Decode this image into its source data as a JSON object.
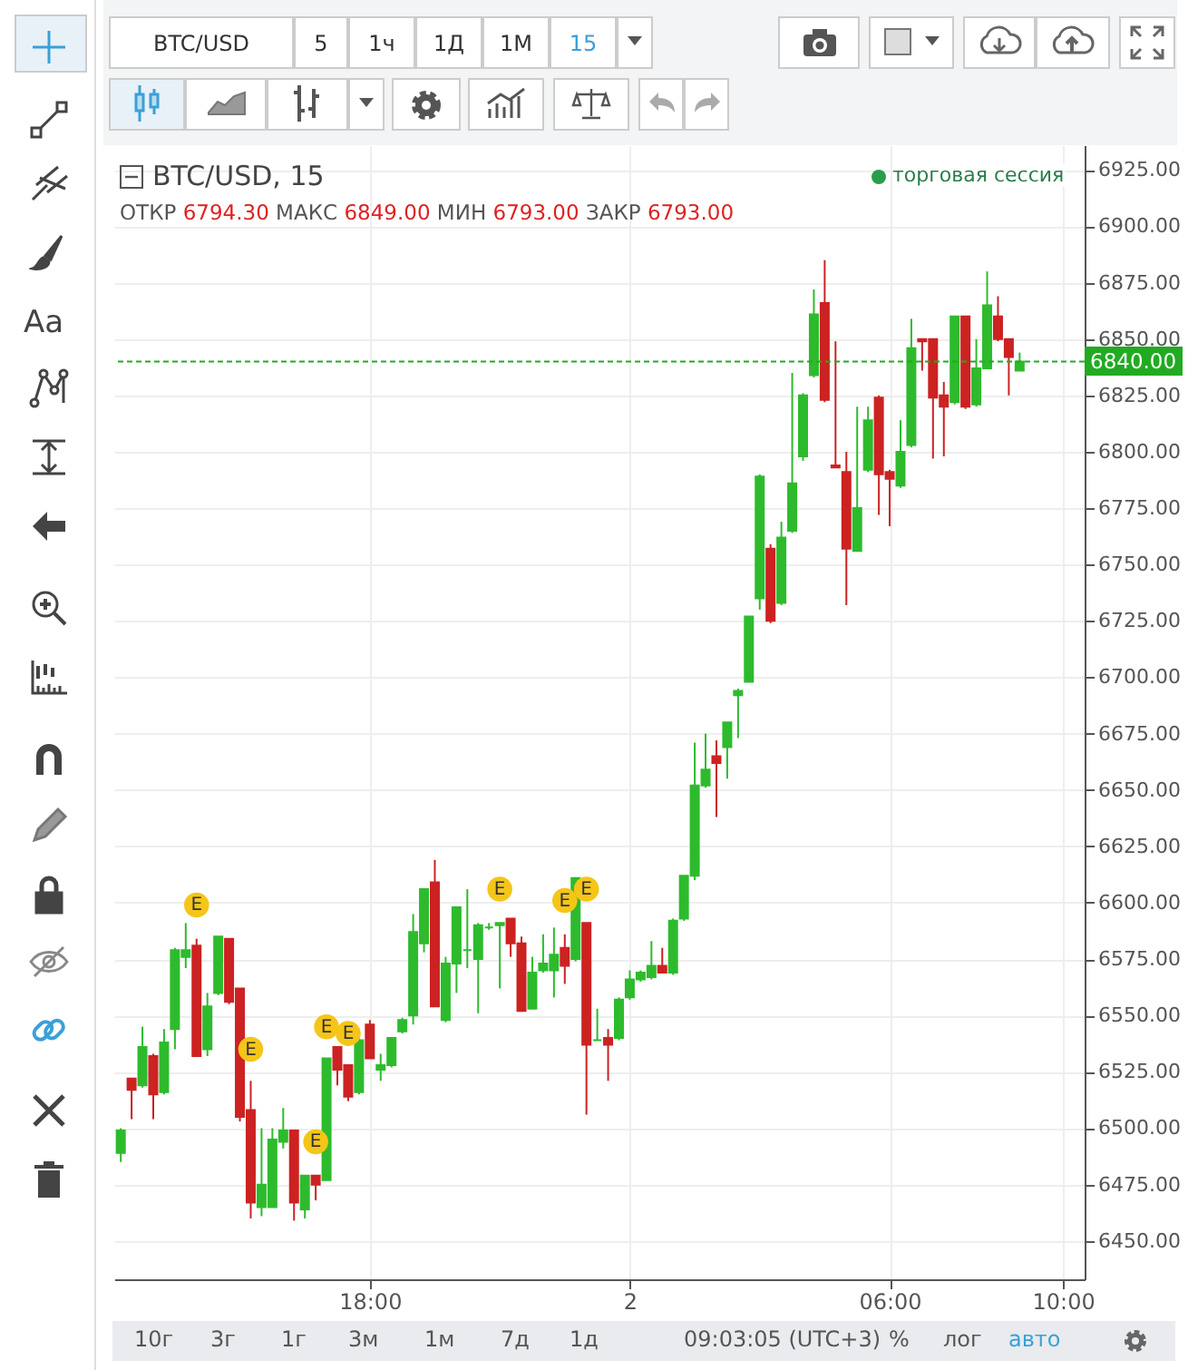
{
  "chart_data": {
    "type": "candlestick",
    "title": "BTC/USD, 15",
    "subtitle": "ОТКР 6794.30 МАКС 6849.00 МИН 6793.00 ЗАКР 6793.00",
    "x": [
      "--07-01T12:15",
      "--07-01T12:30",
      "--07-01T12:45",
      "--07-01T13:00",
      "--07-01T13:15",
      "--07-01T13:30",
      "--07-01T13:45",
      "--07-01T14:00",
      "--07-01T14:15",
      "--07-01T14:30",
      "--07-01T14:45",
      "--07-01T15:00",
      "--07-01T15:15",
      "--07-01T15:30",
      "--07-01T15:45",
      "--07-01T16:00",
      "--07-01T16:15",
      "--07-01T16:30",
      "--07-01T16:45",
      "--07-01T17:00",
      "--07-01T17:15",
      "--07-01T17:30",
      "--07-01T17:45",
      "--07-01T18:00",
      "--07-01T18:15",
      "--07-01T18:30",
      "--07-01T18:45",
      "--07-01T19:00",
      "--07-01T19:15",
      "--07-01T19:30",
      "--07-01T19:45",
      "--07-01T20:00",
      "--07-01T20:15",
      "--07-01T20:30",
      "--07-01T20:45",
      "--07-01T21:00",
      "--07-01T21:15",
      "--07-01T21:30",
      "--07-01T21:45",
      "--07-01T22:00",
      "--07-01T22:15",
      "--07-01T22:30",
      "--07-01T22:45",
      "--07-01T23:00",
      "--07-01T23:15",
      "--07-01T23:30",
      "--07-01T23:45",
      "--07-02T00:00",
      "--07-02T00:15",
      "--07-02T00:30",
      "--07-02T00:45",
      "--07-02T01:00",
      "--07-02T01:15",
      "--07-02T01:30",
      "--07-02T01:45",
      "--07-02T02:00",
      "--07-02T02:15",
      "--07-02T02:30",
      "--07-02T02:45",
      "--07-02T03:00",
      "--07-02T03:15",
      "--07-02T03:30",
      "--07-02T03:45",
      "--07-02T04:00",
      "--07-02T04:15",
      "--07-02T04:30",
      "--07-02T04:45",
      "--07-02T05:00",
      "--07-02T05:15",
      "--07-02T05:30",
      "--07-02T05:45",
      "--07-02T06:00",
      "--07-02T06:15",
      "--07-02T06:30",
      "--07-02T06:45",
      "--07-02T07:00",
      "--07-02T07:15",
      "--07-02T07:30",
      "--07-02T07:45",
      "--07-02T08:00",
      "--07-02T08:15",
      "--07-02T08:30",
      "--07-02T08:45",
      "--07-02T09:00"
    ],
    "ohlc": [
      [
        6489,
        6500,
        6485,
        6499
      ],
      [
        6522,
        6522,
        6504,
        6517
      ],
      [
        6519,
        6545,
        6518,
        6536
      ],
      [
        6532,
        6533,
        6504,
        6515
      ],
      [
        6516,
        6544,
        6515,
        6538
      ],
      [
        6544,
        6580,
        6535,
        6579
      ],
      [
        6576,
        6591,
        6571,
        6579
      ],
      [
        6581,
        6584,
        6532,
        6532
      ],
      [
        6535,
        6560,
        6532,
        6554
      ],
      [
        6560,
        6585,
        6559,
        6585
      ],
      [
        6584,
        6584,
        6555,
        6556
      ],
      [
        6562,
        6562,
        6503,
        6505
      ],
      [
        6508,
        6521,
        6460,
        6467
      ],
      [
        6465,
        6500,
        6461,
        6475
      ],
      [
        6465,
        6500,
        6465,
        6495
      ],
      [
        6494,
        6509,
        6491,
        6499
      ],
      [
        6499,
        6499,
        6459,
        6467
      ],
      [
        6464,
        6479,
        6460,
        6479
      ],
      [
        6479,
        6479,
        6468,
        6475
      ],
      [
        6477,
        6531,
        6477,
        6531
      ],
      [
        6536,
        6536,
        6519,
        6526
      ],
      [
        6528,
        6528,
        6512,
        6514
      ],
      [
        6516,
        6540,
        6515,
        6539
      ],
      [
        6546,
        6548,
        6531,
        6531
      ],
      [
        6526,
        6533,
        6521,
        6528
      ],
      [
        6528,
        6540,
        6527,
        6540
      ],
      [
        6543,
        6549,
        6542,
        6548
      ],
      [
        6550,
        6595,
        6546,
        6587
      ],
      [
        6582,
        6606,
        6578,
        6606
      ],
      [
        6609,
        6619,
        6554,
        6554
      ],
      [
        6548,
        6576,
        6547,
        6573
      ],
      [
        6573,
        6598,
        6560,
        6598
      ],
      [
        6579,
        6606,
        6571,
        6579
      ],
      [
        6575,
        6591,
        6551,
        6590
      ],
      [
        6589,
        6591,
        6588,
        6589
      ],
      [
        6590,
        6591,
        6562,
        6591
      ],
      [
        6593,
        6593,
        6576,
        6582
      ],
      [
        6582,
        6585,
        6552,
        6552
      ],
      [
        6553,
        6576,
        6553,
        6569
      ],
      [
        6570,
        6586,
        6569,
        6573
      ],
      [
        6570,
        6589,
        6558,
        6577
      ],
      [
        6580,
        6586,
        6564,
        6572
      ],
      [
        6575,
        6611,
        6574,
        6611
      ],
      [
        6591,
        6591,
        6506,
        6537
      ],
      [
        6539,
        6553,
        6539,
        6539
      ],
      [
        6540,
        6544,
        6521,
        6537
      ],
      [
        6540,
        6558,
        6539,
        6557
      ],
      [
        6558,
        6570,
        6557,
        6566
      ],
      [
        6566,
        6570,
        6565,
        6569
      ],
      [
        6567,
        6583,
        6566,
        6572
      ],
      [
        6572,
        6580,
        6569,
        6569
      ],
      [
        6569,
        6593,
        6568,
        6592
      ],
      [
        6593,
        6612,
        6592,
        6612
      ],
      [
        6612,
        6671,
        6610,
        6652
      ],
      [
        6652,
        6675,
        6651,
        6659
      ],
      [
        6665,
        6672,
        6638,
        6662
      ],
      [
        6669,
        6680,
        6655,
        6680
      ],
      [
        6692,
        6695,
        6673,
        6694
      ],
      [
        6698,
        6727,
        6698,
        6727
      ],
      [
        6735,
        6790,
        6730,
        6789
      ],
      [
        6757,
        6759,
        6724,
        6725
      ],
      [
        6733,
        6769,
        6732,
        6762
      ],
      [
        6765,
        6835,
        6764,
        6786
      ],
      [
        6798,
        6826,
        6796,
        6825
      ],
      [
        6834,
        6872,
        6833,
        6861
      ],
      [
        6866,
        6885,
        6822,
        6823
      ],
      [
        6794,
        6849,
        6793,
        6793
      ],
      [
        6791,
        6800,
        6732,
        6757
      ],
      [
        6756,
        6820,
        6756,
        6775
      ],
      [
        6792,
        6820,
        6791,
        6814
      ],
      [
        6824,
        6825,
        6772,
        6790
      ],
      [
        6791,
        6792,
        6767,
        6788
      ],
      [
        6785,
        6814,
        6784,
        6800
      ],
      [
        6803,
        6859,
        6802,
        6846
      ],
      [
        6850,
        6850,
        6836,
        6849
      ],
      [
        6850,
        6850,
        6797,
        6824
      ],
      [
        6825,
        6831,
        6798,
        6820
      ],
      [
        6822,
        6860,
        6821,
        6860
      ],
      [
        6860,
        6860,
        6819,
        6820
      ],
      [
        6821,
        6850,
        6820,
        6837
      ],
      [
        6837,
        6880,
        6837,
        6865
      ],
      [
        6860,
        6869,
        6849,
        6850
      ],
      [
        6850,
        6850,
        6825,
        6842
      ],
      [
        6836,
        6844,
        6836,
        6840
      ]
    ],
    "colors": [
      "#2dbb2d",
      "#cc2222",
      "#2dbb2d",
      "#cc2222",
      "#2dbb2d",
      "#2dbb2d",
      "#2dbb2d",
      "#cc2222",
      "#2dbb2d",
      "#2dbb2d",
      "#cc2222",
      "#cc2222",
      "#cc2222",
      "#2dbb2d",
      "#2dbb2d",
      "#2dbb2d",
      "#cc2222",
      "#2dbb2d",
      "#cc2222",
      "#2dbb2d",
      "#cc2222",
      "#cc2222",
      "#2dbb2d",
      "#cc2222",
      "#2dbb2d",
      "#2dbb2d",
      "#2dbb2d",
      "#2dbb2d",
      "#2dbb2d",
      "#cc2222",
      "#2dbb2d",
      "#2dbb2d",
      "#2dbb2d",
      "#2dbb2d",
      "#2dbb2d",
      "#2dbb2d",
      "#cc2222",
      "#cc2222",
      "#2dbb2d",
      "#2dbb2d",
      "#2dbb2d",
      "#cc2222",
      "#2dbb2d",
      "#cc2222",
      "#2dbb2d",
      "#cc2222",
      "#2dbb2d",
      "#2dbb2d",
      "#2dbb2d",
      "#2dbb2d",
      "#cc2222",
      "#2dbb2d",
      "#2dbb2d",
      "#2dbb2d",
      "#2dbb2d",
      "#cc2222",
      "#2dbb2d",
      "#2dbb2d",
      "#2dbb2d",
      "#2dbb2d",
      "#cc2222",
      "#2dbb2d",
      "#2dbb2d",
      "#2dbb2d",
      "#2dbb2d",
      "#cc2222",
      "#cc2222",
      "#cc2222",
      "#2dbb2d",
      "#2dbb2d",
      "#cc2222",
      "#cc2222",
      "#2dbb2d",
      "#2dbb2d",
      "#cc2222",
      "#cc2222",
      "#cc2222",
      "#2dbb2d",
      "#cc2222",
      "#2dbb2d",
      "#2dbb2d",
      "#cc2222",
      "#cc2222",
      "#2dbb2d"
    ],
    "xlim": [
      "--07-01T12:06",
      "--07-02T10:30"
    ],
    "xticks": [
      {
        "value": "--07-01T18:00",
        "label": "18:00"
      },
      {
        "value": "--07-02",
        "label": "2"
      },
      {
        "value": "--07-02T06:00",
        "label": "06:00"
      },
      {
        "value": "--07-02T10:00",
        "label": "10:00"
      }
    ],
    "ylim": [
      6433,
      6936
    ],
    "yticks": [
      {
        "value": 6450,
        "label": "6450.00"
      },
      {
        "value": 6475,
        "label": "6475.00"
      },
      {
        "value": 6500,
        "label": "6500.00"
      },
      {
        "value": 6525,
        "label": "6525.00"
      },
      {
        "value": 6550,
        "label": "6550.00"
      },
      {
        "value": 6575,
        "label": "6575.00"
      },
      {
        "value": 6600,
        "label": "6600.00"
      },
      {
        "value": 6625,
        "label": "6625.00"
      },
      {
        "value": 6650,
        "label": "6650.00"
      },
      {
        "value": 6675,
        "label": "6675.00"
      },
      {
        "value": 6700,
        "label": "6700.00"
      },
      {
        "value": 6725,
        "label": "6725.00"
      },
      {
        "value": 6750,
        "label": "6750.00"
      },
      {
        "value": 6775,
        "label": "6775.00"
      },
      {
        "value": 6800,
        "label": "6800.00"
      },
      {
        "value": 6825,
        "label": "6825.00"
      },
      {
        "value": 6850,
        "label": "6850.00"
      },
      {
        "value": 6875,
        "label": "6875.00"
      },
      {
        "value": 6900,
        "label": "6900.00"
      },
      {
        "value": 6925,
        "label": "6925.00"
      }
    ],
    "grid": true,
    "ref_lines": [
      {
        "axis": "y",
        "value": 6840,
        "label": "6840.00",
        "color": "#22aa22",
        "line_style": "dashed"
      }
    ],
    "annotations": [
      "BTC/USD",
      "5",
      "1ч",
      "1Д",
      "1М",
      "15",
      "10г",
      "3г",
      "1г",
      "3м",
      "1м",
      "7д",
      "1д",
      "09:03:05 (UTC+3)",
      "%",
      "лог",
      "авто",
      "торговая сессия",
      "Aa",
      {
        "text": "E",
        "x": "--07-01T14:00",
        "y": 6599
      },
      {
        "text": "E",
        "x": "--07-01T15:15",
        "y": 6535
      },
      {
        "text": "E",
        "x": "--07-01T16:45",
        "y": 6494
      },
      {
        "text": "E",
        "x": "--07-01T17:00",
        "y": 6545
      },
      {
        "text": "E",
        "x": "--07-01T17:30",
        "y": 6542
      },
      {
        "text": "E",
        "x": "--07-01T21:00",
        "y": 6606
      },
      {
        "text": "E",
        "x": "--07-01T22:30",
        "y": 6601
      },
      {
        "text": "E",
        "x": "--07-01T23:00",
        "y": 6606
      }
    ]
  }
}
